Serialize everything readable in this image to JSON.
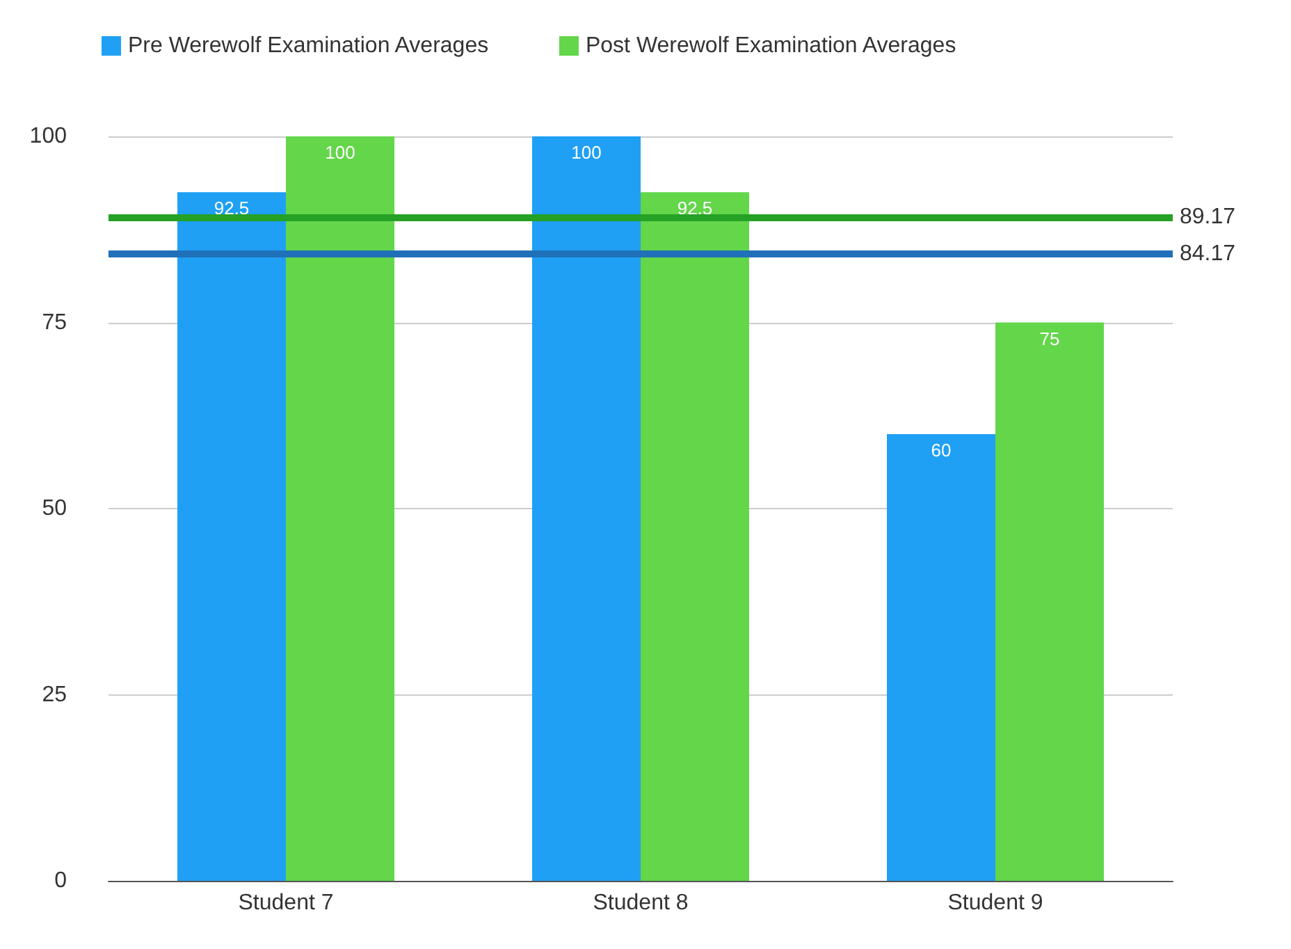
{
  "chart_data": {
    "type": "bar",
    "categories": [
      "Student 7",
      "Student 8",
      "Student 9"
    ],
    "series": [
      {
        "name": "Pre Werewolf Examination Averages",
        "color": "#1fa0f5",
        "values": [
          92.5,
          100,
          60
        ]
      },
      {
        "name": "Post Werewolf Examination Averages",
        "color": "#63d64a",
        "values": [
          100,
          92.5,
          75
        ]
      }
    ],
    "ylim": [
      0,
      100
    ],
    "yticks": [
      0,
      25,
      50,
      75,
      100
    ],
    "grid": "y",
    "legend": "top left",
    "data_labels": true,
    "ref_lines": [
      {
        "axis": "y",
        "value": 89.17,
        "label": "89.17",
        "color": "#25a125"
      },
      {
        "axis": "y",
        "value": 84.17,
        "label": "84.17",
        "color": "#1f70b8"
      }
    ]
  }
}
